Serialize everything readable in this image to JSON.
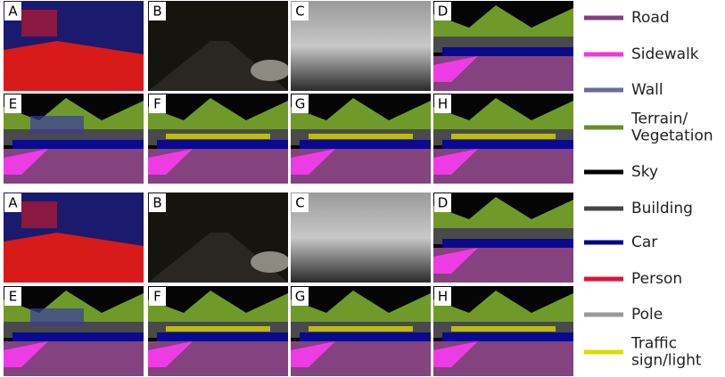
{
  "groups": [
    {
      "panels": [
        {
          "label": "A"
        },
        {
          "label": "B"
        },
        {
          "label": "C"
        },
        {
          "label": "D"
        },
        {
          "label": "E"
        },
        {
          "label": "F"
        },
        {
          "label": "G"
        },
        {
          "label": "H"
        }
      ]
    },
    {
      "panels": [
        {
          "label": "A"
        },
        {
          "label": "B"
        },
        {
          "label": "C"
        },
        {
          "label": "D"
        },
        {
          "label": "E"
        },
        {
          "label": "F"
        },
        {
          "label": "G"
        },
        {
          "label": "H"
        }
      ]
    }
  ],
  "legend": [
    {
      "lines": [
        "Road"
      ],
      "color": "#80407f"
    },
    {
      "lines": [
        "Sidewalk"
      ],
      "color": "#f035e6"
    },
    {
      "lines": [
        "Wall"
      ],
      "color": "#6b6b9c"
    },
    {
      "lines": [
        "Terrain/",
        "Vegetation"
      ],
      "color": "#6b8e23"
    },
    {
      "lines": [
        "Sky"
      ],
      "color": "#000000"
    },
    {
      "lines": [
        "Building"
      ],
      "color": "#464646"
    },
    {
      "lines": [
        "Car"
      ],
      "color": "#00008e"
    },
    {
      "lines": [
        "Person"
      ],
      "color": "#dc143c"
    },
    {
      "lines": [
        "Pole"
      ],
      "color": "#999999"
    },
    {
      "lines": [
        "Traffic",
        "sign/light"
      ],
      "color": "#dcdc00"
    }
  ]
}
